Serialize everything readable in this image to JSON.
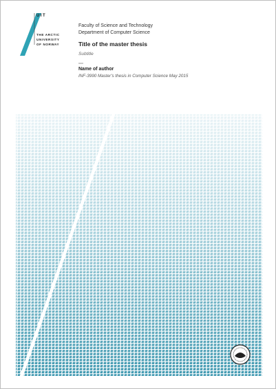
{
  "logo": {
    "name": "UIT",
    "lines": [
      "THE ARCTIC",
      "UNIVERSITY",
      "OF NORWAY"
    ]
  },
  "header": {
    "faculty": "Faculty of Science and Technology",
    "department": "Department of Computer Science",
    "title": "Title of the master thesis",
    "subtitle": "Subtitle",
    "author": "Name of author",
    "course": "INF-3990 Master's thesis in Computer Science May 2015"
  }
}
